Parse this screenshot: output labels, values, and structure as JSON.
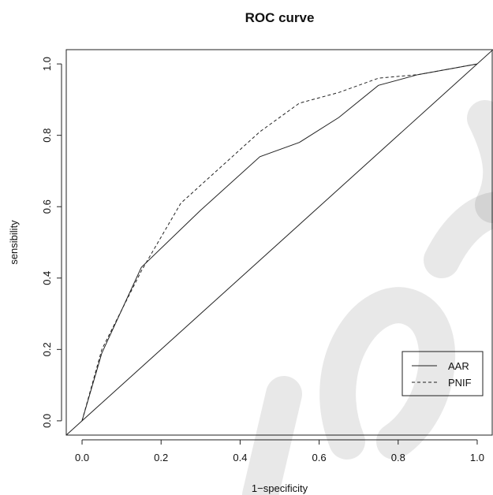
{
  "chart_data": {
    "type": "line",
    "title": "ROC curve",
    "xlabel": "1−specificity",
    "ylabel": "sensibility",
    "xlim": [
      -0.04,
      1.04
    ],
    "ylim": [
      -0.04,
      1.04
    ],
    "x_ticks": [
      "0.0",
      "0.2",
      "0.4",
      "0.6",
      "0.8",
      "1.0"
    ],
    "y_ticks": [
      "0.0",
      "0.2",
      "0.4",
      "0.6",
      "0.8",
      "1.0"
    ],
    "grid": false,
    "legend_position": "bottom-right",
    "series": [
      {
        "name": "AAR",
        "line_style": "solid",
        "color": "#222222",
        "x": [
          0,
          0.05,
          0.15,
          0.3,
          0.45,
          0.55,
          0.65,
          0.75,
          0.85,
          1.0
        ],
        "y": [
          0,
          0.19,
          0.43,
          0.59,
          0.74,
          0.78,
          0.85,
          0.94,
          0.97,
          1.0
        ]
      },
      {
        "name": "PNIF",
        "line_style": "dashed",
        "color": "#222222",
        "x": [
          0,
          0.05,
          0.15,
          0.25,
          0.35,
          0.45,
          0.55,
          0.65,
          0.75,
          0.85,
          1.0
        ],
        "y": [
          0,
          0.2,
          0.42,
          0.61,
          0.71,
          0.81,
          0.89,
          0.92,
          0.96,
          0.97,
          1.0
        ]
      },
      {
        "line_style": "solid",
        "color": "#222222",
        "x": [
          -0.04,
          1.04
        ],
        "y": [
          -0.04,
          1.04
        ]
      }
    ]
  }
}
